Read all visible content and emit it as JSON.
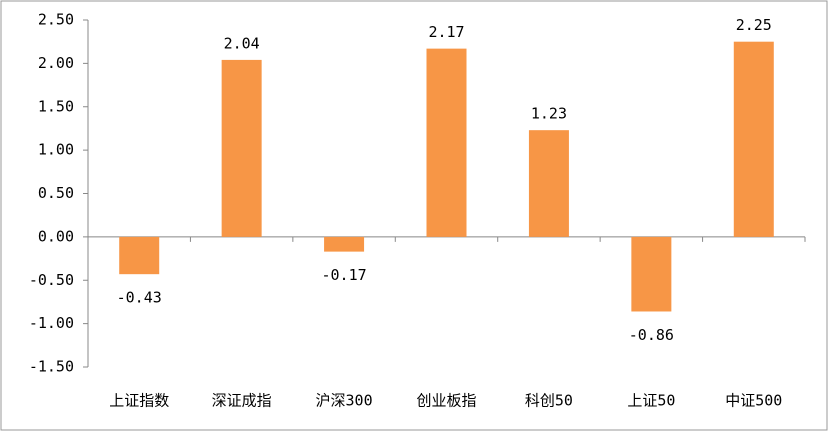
{
  "chart_data": {
    "type": "bar",
    "categories": [
      "上证指数",
      "深证成指",
      "沪深300",
      "创业板指",
      "科创50",
      "上证50",
      "中证500"
    ],
    "values": [
      -0.43,
      2.04,
      -0.17,
      2.17,
      1.23,
      -0.86,
      2.25
    ],
    "color": "#f79646",
    "ylim": [
      -1.5,
      2.5
    ],
    "yticks": [
      {
        "value": -1.5,
        "label": "-1.50"
      },
      {
        "value": -1,
        "label": "-1.00"
      },
      {
        "value": -0.5,
        "label": "-0.50"
      },
      {
        "value": 0,
        "label": "0.00"
      },
      {
        "value": 0.5,
        "label": "0.50"
      },
      {
        "value": 1,
        "label": "1.00"
      },
      {
        "value": 1.5,
        "label": "1.50"
      },
      {
        "value": 2,
        "label": "2.00"
      },
      {
        "value": 2.5,
        "label": "2.50"
      }
    ],
    "grid": false
  }
}
